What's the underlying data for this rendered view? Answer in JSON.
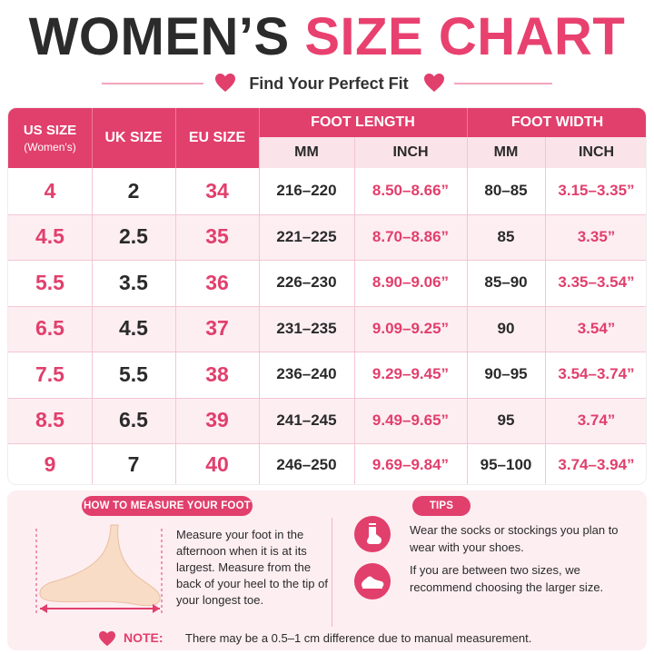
{
  "title": {
    "part1": "WOMEN’S",
    "part2": "SIZE CHART"
  },
  "subtitle": "Find Your Perfect Fit",
  "table": {
    "headers": {
      "us_size": "US SIZE",
      "us_size_sub": "(Women's)",
      "uk_size": "UK SIZE",
      "eu_size": "EU SIZE",
      "foot_length": "FOOT LENGTH",
      "foot_width": "FOOT WIDTH",
      "mm": "MM",
      "inch": "INCH"
    },
    "rows": [
      {
        "us": "4",
        "uk": "2",
        "eu": "34",
        "len_mm": "216–220",
        "len_in": "8.50–8.66”",
        "wid_mm": "80–85",
        "wid_in": "3.15–3.35”"
      },
      {
        "us": "4.5",
        "uk": "2.5",
        "eu": "35",
        "len_mm": "221–225",
        "len_in": "8.70–8.86”",
        "wid_mm": "85",
        "wid_in": "3.35”"
      },
      {
        "us": "5.5",
        "uk": "3.5",
        "eu": "36",
        "len_mm": "226–230",
        "len_in": "8.90–9.06”",
        "wid_mm": "85–90",
        "wid_in": "3.35–3.54”"
      },
      {
        "us": "6.5",
        "uk": "4.5",
        "eu": "37",
        "len_mm": "231–235",
        "len_in": "9.09–9.25”",
        "wid_mm": "90",
        "wid_in": "3.54”"
      },
      {
        "us": "7.5",
        "uk": "5.5",
        "eu": "38",
        "len_mm": "236–240",
        "len_in": "9.29–9.45”",
        "wid_mm": "90–95",
        "wid_in": "3.54–3.74”"
      },
      {
        "us": "8.5",
        "uk": "6.5",
        "eu": "39",
        "len_mm": "241–245",
        "len_in": "9.49–9.65”",
        "wid_mm": "95",
        "wid_in": "3.74”"
      },
      {
        "us": "9",
        "uk": "7",
        "eu": "40",
        "len_mm": "246–250",
        "len_in": "9.69–9.84”",
        "wid_mm": "95–100",
        "wid_in": "3.74–3.94”"
      }
    ]
  },
  "measure": {
    "label": "HOW TO MEASURE YOUR FOOT",
    "text": "Measure your foot in the afternoon when it is at its largest. Measure from the back of your heel to the tip of your longest toe."
  },
  "tips": {
    "label": "TIPS",
    "items": [
      {
        "icon": "sock-icon",
        "text": "Wear the socks or stockings you plan to wear with your shoes."
      },
      {
        "icon": "shoe-icon",
        "text": "If you are between two sizes, we recommend choosing the larger size."
      }
    ]
  },
  "note": {
    "label": "NOTE:",
    "text": "There may be a 0.5–1 cm difference due to manual measurement."
  },
  "colors": {
    "accent": "#e13f6c",
    "dark": "#2b2b2b",
    "row_alt": "#fdeef2"
  }
}
